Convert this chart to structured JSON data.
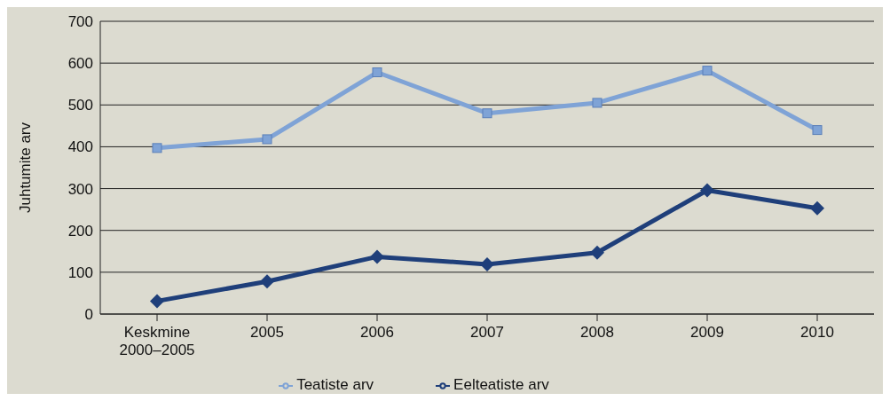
{
  "chart_data": {
    "type": "line",
    "ylabel": "Juhtumite arv",
    "categories": [
      "Keskmine 2000–2005",
      "2005",
      "2006",
      "2007",
      "2008",
      "2009",
      "2010"
    ],
    "series": [
      {
        "name": "Teatiste arv",
        "color": "#7fa3d6",
        "marker": "square",
        "values": [
          397,
          418,
          578,
          480,
          505,
          582,
          440
        ]
      },
      {
        "name": "Eelteatiste arv",
        "color": "#1f3f7a",
        "marker": "diamond",
        "values": [
          31,
          78,
          137,
          119,
          147,
          296,
          253
        ]
      }
    ],
    "ylim": [
      0,
      700
    ],
    "yticks": [
      0,
      100,
      200,
      300,
      400,
      500,
      600,
      700
    ],
    "grid": "y",
    "legend": "bottom",
    "line_style": "solid"
  }
}
